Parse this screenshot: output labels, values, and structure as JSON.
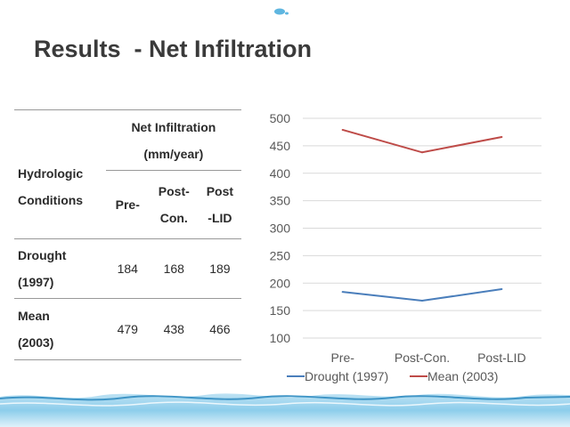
{
  "title": "Results  - Net Infiltration",
  "table": {
    "col_condition": "Hydrologic\nConditions",
    "col_net": "Net Infiltration\n(mm/year)",
    "sub_headers": [
      "Pre-",
      "Post-\nCon.",
      "Post\n-LID"
    ],
    "rows": [
      {
        "label": "Drought\n(1997)",
        "values": [
          "184",
          "168",
          "189"
        ]
      },
      {
        "label": "Mean\n(2003)",
        "values": [
          "479",
          "438",
          "466"
        ]
      }
    ]
  },
  "chart_data": {
    "type": "line",
    "categories": [
      "Pre-",
      "Post-Con.",
      "Post-LID"
    ],
    "series": [
      {
        "name": "Drought (1997)",
        "values": [
          184,
          168,
          189
        ],
        "color": "#4a7ebb"
      },
      {
        "name": "Mean (2003)",
        "values": [
          479,
          438,
          466
        ],
        "color": "#be4b48"
      }
    ],
    "ylim": [
      100,
      500
    ],
    "yticks": [
      "100",
      "150",
      "200",
      "250",
      "300",
      "350",
      "400",
      "450",
      "500"
    ],
    "grid": true,
    "legend": "bottom"
  }
}
